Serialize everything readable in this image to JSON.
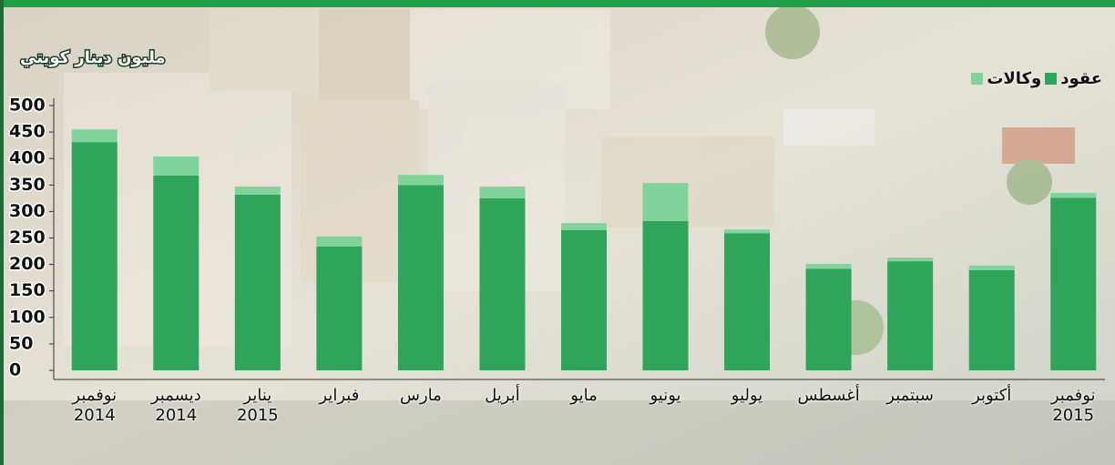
{
  "chart_data": {
    "type": "bar",
    "stacked": true,
    "y_label": "مليون دينار كويتي",
    "categories": [
      "نوفمبر 2014",
      "ديسمبر 2014",
      "يناير 2015",
      "فبراير",
      "مارس",
      "أبريل",
      "مايو",
      "يونيو",
      "يوليو",
      "أغسطس",
      "سبتمبر",
      "أكتوبر",
      "نوفمبر 2015"
    ],
    "series": [
      {
        "name": "عقود",
        "color": "#2ea55a",
        "values": [
          431,
          368,
          332,
          234,
          350,
          325,
          265,
          282,
          259,
          192,
          206,
          189,
          326
        ]
      },
      {
        "name": "وكالات",
        "color": "#80d49b",
        "values": [
          24,
          36,
          15,
          19,
          19,
          22,
          13,
          72,
          7,
          9,
          7,
          9,
          9
        ]
      }
    ],
    "ylim": [
      0,
      500
    ],
    "yticks": [
      0,
      50,
      100,
      150,
      200,
      250,
      300,
      350,
      400,
      450,
      500
    ],
    "legend": "top-right"
  }
}
